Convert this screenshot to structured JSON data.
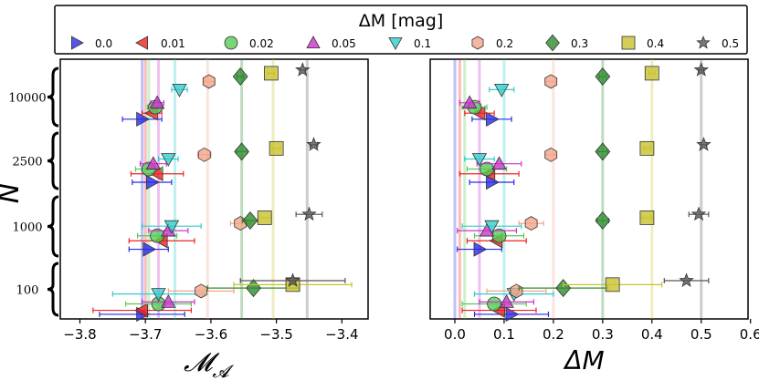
{
  "legend": {
    "title": "ΔM [mag]",
    "entries": [
      {
        "label": "0.0",
        "dm": 0.0,
        "color": "#2a2ae8",
        "marker": "tri-right"
      },
      {
        "label": "0.01",
        "dm": 0.01,
        "color": "#ee2222",
        "marker": "tri-left"
      },
      {
        "label": "0.02",
        "dm": 0.02,
        "color": "#55cc55",
        "marker": "circle"
      },
      {
        "label": "0.05",
        "dm": 0.05,
        "color": "#cc33cc",
        "marker": "tri-up"
      },
      {
        "label": "0.1",
        "dm": 0.1,
        "color": "#33cccc",
        "marker": "tri-down"
      },
      {
        "label": "0.2",
        "dm": 0.2,
        "color": "#f2a58a",
        "marker": "hexagon"
      },
      {
        "label": "0.3",
        "dm": 0.3,
        "color": "#2e8b2e",
        "marker": "diamond"
      },
      {
        "label": "0.4",
        "dm": 0.4,
        "color": "#c9c230",
        "marker": "square"
      },
      {
        "label": "0.5",
        "dm": 0.5,
        "color": "#555555",
        "marker": "star"
      }
    ]
  },
  "chart_data": [
    {
      "type": "scatter",
      "panel": "left",
      "xlabel": "𝓜",
      "xlabel_sub": "𝓐",
      "ylabel": "N",
      "xlim": [
        -3.83,
        -3.36
      ],
      "xticks": [
        -3.8,
        -3.7,
        -3.6,
        -3.5,
        -3.4
      ],
      "xtick_labels": [
        "−3.8",
        "−3.7",
        "−3.6",
        "−3.5",
        "−3.4"
      ],
      "ref_lines": [
        -3.705,
        -3.7,
        -3.695,
        -3.68,
        -3.655,
        -3.605,
        -3.553,
        -3.505,
        -3.453
      ],
      "groups": [
        {
          "label": "10000",
          "points": [
            {
              "series": "0.0",
              "x": -3.705,
              "err": 0.03,
              "y": 0.22
            },
            {
              "series": "0.01",
              "x": -3.69,
              "err": 0.015,
              "y": 0.33
            },
            {
              "series": "0.02",
              "x": -3.685,
              "err": 0.012,
              "y": 0.44
            },
            {
              "series": "0.05",
              "x": -3.682,
              "err": 0.01,
              "y": 0.52
            },
            {
              "series": "0.1",
              "x": -3.648,
              "err": 0.012,
              "y": 0.76
            },
            {
              "series": "0.2",
              "x": -3.603,
              "err": 0.008,
              "y": 0.91
            },
            {
              "series": "0.3",
              "x": -3.555,
              "err": 0.005,
              "y": 1.0
            },
            {
              "series": "0.4",
              "x": -3.508,
              "err": 0.005,
              "y": 1.06
            },
            {
              "series": "0.5",
              "x": -3.46,
              "err": 0.004,
              "y": 1.12
            }
          ]
        },
        {
          "label": "2500",
          "points": [
            {
              "series": "0.0",
              "x": -3.69,
              "err": 0.03,
              "y": 0.22
            },
            {
              "series": "0.01",
              "x": -3.682,
              "err": 0.04,
              "y": 0.38
            },
            {
              "series": "0.02",
              "x": -3.695,
              "err": 0.02,
              "y": 0.47
            },
            {
              "series": "0.05",
              "x": -3.688,
              "err": 0.02,
              "y": 0.57
            },
            {
              "series": "0.1",
              "x": -3.665,
              "err": 0.015,
              "y": 0.66
            },
            {
              "series": "0.2",
              "x": -3.61,
              "err": 0.01,
              "y": 0.74
            },
            {
              "series": "0.3",
              "x": -3.553,
              "err": 0.008,
              "y": 0.8
            },
            {
              "series": "0.4",
              "x": -3.5,
              "err": 0.006,
              "y": 0.86
            },
            {
              "series": "0.5",
              "x": -3.443,
              "err": 0.006,
              "y": 0.93
            }
          ]
        },
        {
          "label": "1000",
          "points": [
            {
              "series": "0.0",
              "x": -3.695,
              "err": 0.03,
              "y": 0.22
            },
            {
              "series": "0.01",
              "x": -3.675,
              "err": 0.05,
              "y": 0.37
            },
            {
              "series": "0.02",
              "x": -3.682,
              "err": 0.03,
              "y": 0.46
            },
            {
              "series": "0.05",
              "x": -3.665,
              "err": 0.03,
              "y": 0.55
            },
            {
              "series": "0.1",
              "x": -3.66,
              "err": 0.045,
              "y": 0.63
            },
            {
              "series": "0.2",
              "x": -3.555,
              "err": 0.015,
              "y": 0.68
            },
            {
              "series": "0.3",
              "x": -3.54,
              "err": 0.012,
              "y": 0.73
            },
            {
              "series": "0.4",
              "x": -3.518,
              "err": 0.01,
              "y": 0.78
            },
            {
              "series": "0.5",
              "x": -3.45,
              "err": 0.02,
              "y": 0.84
            }
          ]
        },
        {
          "label": "100",
          "points": [
            {
              "series": "0.0",
              "x": -3.705,
              "err": 0.065,
              "y": 0.12
            },
            {
              "series": "0.01",
              "x": -3.705,
              "err": 0.075,
              "y": 0.2
            },
            {
              "series": "0.02",
              "x": -3.68,
              "err": 0.05,
              "y": 0.33
            },
            {
              "series": "0.05",
              "x": -3.665,
              "err": 0.04,
              "y": 0.37
            },
            {
              "series": "0.1",
              "x": -3.68,
              "err": 0.07,
              "y": 0.53
            },
            {
              "series": "0.2",
              "x": -3.615,
              "err": 0.05,
              "y": 0.59
            },
            {
              "series": "0.3",
              "x": -3.535,
              "err": 0.07,
              "y": 0.65
            },
            {
              "series": "0.4",
              "x": -3.475,
              "err": 0.09,
              "y": 0.72
            },
            {
              "series": "0.5",
              "x": -3.475,
              "err": 0.08,
              "y": 0.8
            }
          ]
        }
      ]
    },
    {
      "type": "scatter",
      "panel": "right",
      "xlabel": "ΔM",
      "ylabel": "N",
      "xlim": [
        -0.05,
        0.595
      ],
      "xticks": [
        0.0,
        0.1,
        0.2,
        0.3,
        0.4,
        0.5,
        0.6
      ],
      "xtick_labels": [
        "0.0",
        "0.1",
        "0.2",
        "0.3",
        "0.4",
        "0.5",
        "0.6"
      ],
      "ref_lines": [
        0.0,
        0.01,
        0.02,
        0.05,
        0.1,
        0.2,
        0.3,
        0.4,
        0.5
      ],
      "groups": [
        {
          "label": "10000",
          "points": [
            {
              "series": "0.0",
              "x": 0.075,
              "err": 0.04,
              "y": 0.22
            },
            {
              "series": "0.01",
              "x": 0.05,
              "err": 0.03,
              "y": 0.33
            },
            {
              "series": "0.02",
              "x": 0.04,
              "err": 0.025,
              "y": 0.44
            },
            {
              "series": "0.05",
              "x": 0.03,
              "err": 0.02,
              "y": 0.52
            },
            {
              "series": "0.1",
              "x": 0.095,
              "err": 0.025,
              "y": 0.76
            },
            {
              "series": "0.2",
              "x": 0.195,
              "err": 0.01,
              "y": 0.91
            },
            {
              "series": "0.3",
              "x": 0.3,
              "err": 0.007,
              "y": 1.0
            },
            {
              "series": "0.4",
              "x": 0.4,
              "err": 0.006,
              "y": 1.06
            },
            {
              "series": "0.5",
              "x": 0.5,
              "err": 0.005,
              "y": 1.12
            }
          ]
        },
        {
          "label": "2500",
          "points": [
            {
              "series": "0.0",
              "x": 0.075,
              "err": 0.045,
              "y": 0.22
            },
            {
              "series": "0.01",
              "x": 0.07,
              "err": 0.06,
              "y": 0.38
            },
            {
              "series": "0.02",
              "x": 0.065,
              "err": 0.04,
              "y": 0.47
            },
            {
              "series": "0.05",
              "x": 0.09,
              "err": 0.045,
              "y": 0.57
            },
            {
              "series": "0.1",
              "x": 0.05,
              "err": 0.03,
              "y": 0.66
            },
            {
              "series": "0.2",
              "x": 0.195,
              "err": 0.01,
              "y": 0.74
            },
            {
              "series": "0.3",
              "x": 0.3,
              "err": 0.01,
              "y": 0.8
            },
            {
              "series": "0.4",
              "x": 0.39,
              "err": 0.006,
              "y": 0.86
            },
            {
              "series": "0.5",
              "x": 0.505,
              "err": 0.006,
              "y": 0.93
            }
          ]
        },
        {
          "label": "1000",
          "points": [
            {
              "series": "0.0",
              "x": 0.05,
              "err": 0.045,
              "y": 0.22
            },
            {
              "series": "0.01",
              "x": 0.085,
              "err": 0.06,
              "y": 0.37
            },
            {
              "series": "0.02",
              "x": 0.09,
              "err": 0.05,
              "y": 0.46
            },
            {
              "series": "0.05",
              "x": 0.065,
              "err": 0.06,
              "y": 0.55
            },
            {
              "series": "0.1",
              "x": 0.075,
              "err": 0.06,
              "y": 0.63
            },
            {
              "series": "0.2",
              "x": 0.155,
              "err": 0.025,
              "y": 0.68
            },
            {
              "series": "0.3",
              "x": 0.3,
              "err": 0.012,
              "y": 0.73
            },
            {
              "series": "0.4",
              "x": 0.39,
              "err": 0.01,
              "y": 0.78
            },
            {
              "series": "0.5",
              "x": 0.495,
              "err": 0.02,
              "y": 0.84
            }
          ]
        },
        {
          "label": "100",
          "points": [
            {
              "series": "0.0",
              "x": 0.115,
              "err": 0.075,
              "y": 0.12
            },
            {
              "series": "0.01",
              "x": 0.09,
              "err": 0.075,
              "y": 0.2
            },
            {
              "series": "0.02",
              "x": 0.08,
              "err": 0.065,
              "y": 0.33
            },
            {
              "series": "0.05",
              "x": 0.105,
              "err": 0.055,
              "y": 0.37
            },
            {
              "series": "0.1",
              "x": 0.12,
              "err": 0.08,
              "y": 0.53
            },
            {
              "series": "0.2",
              "x": 0.125,
              "err": 0.06,
              "y": 0.59
            },
            {
              "series": "0.3",
              "x": 0.22,
              "err": 0.09,
              "y": 0.65
            },
            {
              "series": "0.4",
              "x": 0.32,
              "err": 0.1,
              "y": 0.72
            },
            {
              "series": "0.5",
              "x": 0.47,
              "err": 0.045,
              "y": 0.8
            }
          ]
        }
      ]
    }
  ]
}
